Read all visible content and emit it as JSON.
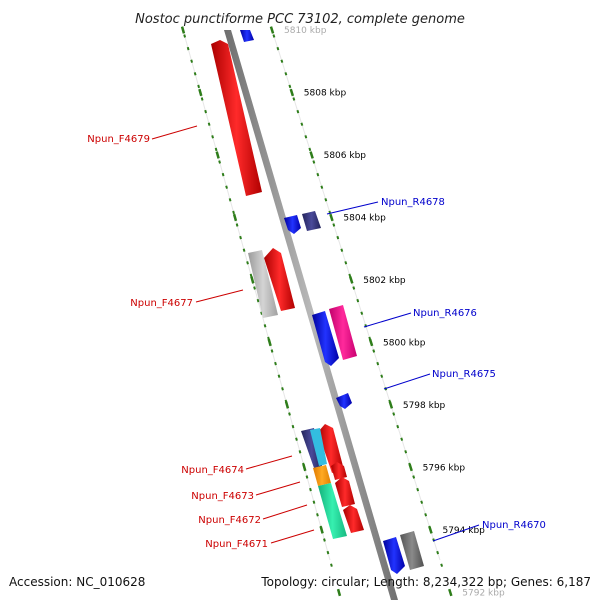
{
  "title": "Nostoc punctiforme PCC 73102, complete genome",
  "footer": {
    "accession": "Accession: NC_010628",
    "summary": "Topology: circular; Length: 8,234,322 bp; Genes: 6,187"
  },
  "colors": {
    "backbone": "#8c8c8c",
    "tick_green": "#2e7d1a",
    "ring_line": "#dcdcdc",
    "label_forward": "#cc0000",
    "label_reverse": "#0000cc"
  },
  "ticks": [
    {
      "label": "5810 kbp",
      "faded": true
    },
    {
      "label": "5808 kbp"
    },
    {
      "label": "5806 kbp"
    },
    {
      "label": "5804 kbp"
    },
    {
      "label": "5802 kbp"
    },
    {
      "label": "5800 kbp"
    },
    {
      "label": "5798 kbp"
    },
    {
      "label": "5796 kbp"
    },
    {
      "label": "5794 kbp"
    },
    {
      "label": "5792 kbp",
      "faded": true
    }
  ],
  "gene_labels": [
    {
      "id": "f4679",
      "text": "Npun_F4679",
      "strand": "forward"
    },
    {
      "id": "r4678",
      "text": "Npun_R4678",
      "strand": "reverse"
    },
    {
      "id": "f4677",
      "text": "Npun_F4677",
      "strand": "forward"
    },
    {
      "id": "r4676",
      "text": "Npun_R4676",
      "strand": "reverse"
    },
    {
      "id": "r4675",
      "text": "Npun_R4675",
      "strand": "reverse"
    },
    {
      "id": "f4674",
      "text": "Npun_F4674",
      "strand": "forward"
    },
    {
      "id": "f4673",
      "text": "Npun_F4673",
      "strand": "forward"
    },
    {
      "id": "f4672",
      "text": "Npun_F4672",
      "strand": "forward"
    },
    {
      "id": "f4671",
      "text": "Npun_F4671",
      "strand": "forward"
    },
    {
      "id": "r4670",
      "text": "Npun_R4670",
      "strand": "reverse"
    }
  ]
}
